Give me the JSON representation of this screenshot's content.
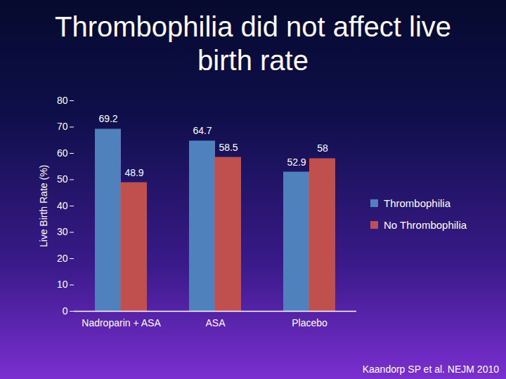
{
  "chart_data": {
    "type": "bar",
    "title": "Thrombophilia did not affect live birth rate",
    "y_label": "Live Birth Rate (%)",
    "caption": "Kaandorp SP et al. NEJM 2010",
    "categories": [
      "Nadroparin + ASA",
      "ASA",
      "Placebo"
    ],
    "series": [
      {
        "name": "Thrombophilia",
        "color": "#4f81bd",
        "values": [
          69.2,
          64.7,
          52.9
        ]
      },
      {
        "name": "No Thrombophilia",
        "color": "#c0504d",
        "values": [
          48.9,
          58.5,
          58
        ]
      }
    ],
    "ylim": [
      0,
      80
    ],
    "yticks": [
      0,
      10,
      20,
      30,
      40,
      50,
      60,
      70,
      80
    ],
    "grid": false,
    "legend": "right",
    "data_labels": true
  }
}
